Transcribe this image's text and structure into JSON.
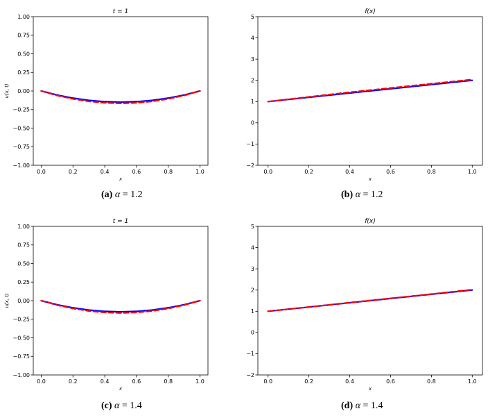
{
  "chart_data": [
    {
      "id": "a",
      "type": "line",
      "title": "t = 1",
      "xlabel": "x",
      "ylabel": "u(x, t)",
      "xlim": [
        -0.05,
        1.05
      ],
      "ylim": [
        -1.0,
        1.0
      ],
      "xticks": [
        "0.0",
        "0.2",
        "0.4",
        "0.6",
        "0.8",
        "1.0"
      ],
      "yticks": [
        "1.00",
        "0.75",
        "0.50",
        "0.25",
        "0.00",
        "−0.25",
        "−0.50",
        "−0.75",
        "−1.00"
      ],
      "x": [
        0.0,
        0.1,
        0.2,
        0.3,
        0.4,
        0.5,
        0.6,
        0.7,
        0.8,
        0.9,
        1.0
      ],
      "series": [
        {
          "color": "#0000ff",
          "style": "solid",
          "values": [
            0.0,
            -0.054,
            -0.096,
            -0.126,
            -0.144,
            -0.15,
            -0.144,
            -0.126,
            -0.096,
            -0.054,
            0.0
          ]
        },
        {
          "color": "#ff0000",
          "style": "dashed",
          "values": [
            0.0,
            -0.061,
            -0.107,
            -0.14,
            -0.16,
            -0.167,
            -0.16,
            -0.14,
            -0.107,
            -0.061,
            0.0
          ]
        }
      ],
      "caption": {
        "label": "(a)",
        "param": "α",
        "value": "= 1.2"
      }
    },
    {
      "id": "b",
      "type": "line",
      "title": "f(x)",
      "xlabel": "x",
      "ylabel": "",
      "xlim": [
        -0.05,
        1.05
      ],
      "ylim": [
        -2,
        5
      ],
      "xticks": [
        "0.0",
        "0.2",
        "0.4",
        "0.6",
        "0.8",
        "1.0"
      ],
      "yticks": [
        "5",
        "4",
        "3",
        "2",
        "1",
        "0",
        "−1",
        "−2"
      ],
      "x": [
        0.0,
        0.2,
        0.4,
        0.6,
        0.8,
        1.0
      ],
      "series": [
        {
          "color": "#0000ff",
          "style": "solid",
          "values": [
            1.0,
            1.2,
            1.4,
            1.6,
            1.8,
            2.0
          ]
        },
        {
          "color": "#ff0000",
          "style": "dashed",
          "values": [
            1.0,
            1.22,
            1.44,
            1.64,
            1.84,
            2.04
          ]
        }
      ],
      "caption": {
        "label": "(b)",
        "param": "α",
        "value": "= 1.2"
      }
    },
    {
      "id": "c",
      "type": "line",
      "title": "t = 1",
      "xlabel": "x",
      "ylabel": "u(x, t)",
      "xlim": [
        -0.05,
        1.05
      ],
      "ylim": [
        -1.0,
        1.0
      ],
      "xticks": [
        "0.0",
        "0.2",
        "0.4",
        "0.6",
        "0.8",
        "1.0"
      ],
      "yticks": [
        "1.00",
        "0.75",
        "0.50",
        "0.25",
        "0.00",
        "−0.25",
        "−0.50",
        "−0.75",
        "−1.00"
      ],
      "x": [
        0.0,
        0.1,
        0.2,
        0.3,
        0.4,
        0.5,
        0.6,
        0.7,
        0.8,
        0.9,
        1.0
      ],
      "series": [
        {
          "color": "#0000ff",
          "style": "solid",
          "values": [
            0.0,
            -0.054,
            -0.096,
            -0.126,
            -0.144,
            -0.15,
            -0.144,
            -0.126,
            -0.096,
            -0.054,
            0.0
          ]
        },
        {
          "color": "#ff0000",
          "style": "dashed",
          "values": [
            0.0,
            -0.06,
            -0.106,
            -0.139,
            -0.159,
            -0.166,
            -0.159,
            -0.139,
            -0.106,
            -0.06,
            0.0
          ]
        }
      ],
      "caption": {
        "label": "(c)",
        "param": "α",
        "value": "= 1.4"
      }
    },
    {
      "id": "d",
      "type": "line",
      "title": "f(x)",
      "xlabel": "x",
      "ylabel": "",
      "xlim": [
        -0.05,
        1.05
      ],
      "ylim": [
        -2,
        5
      ],
      "xticks": [
        "0.0",
        "0.2",
        "0.4",
        "0.6",
        "0.8",
        "1.0"
      ],
      "yticks": [
        "5",
        "4",
        "3",
        "2",
        "1",
        "0",
        "−1",
        "−2"
      ],
      "x": [
        0.0,
        0.2,
        0.4,
        0.6,
        0.8,
        1.0
      ],
      "series": [
        {
          "color": "#0000ff",
          "style": "solid",
          "values": [
            1.0,
            1.2,
            1.4,
            1.6,
            1.8,
            2.0
          ]
        },
        {
          "color": "#ff0000",
          "style": "dashed",
          "values": [
            1.0,
            1.2,
            1.41,
            1.61,
            1.81,
            2.02
          ]
        }
      ],
      "caption": {
        "label": "(d)",
        "param": "α",
        "value": "= 1.4"
      }
    }
  ]
}
